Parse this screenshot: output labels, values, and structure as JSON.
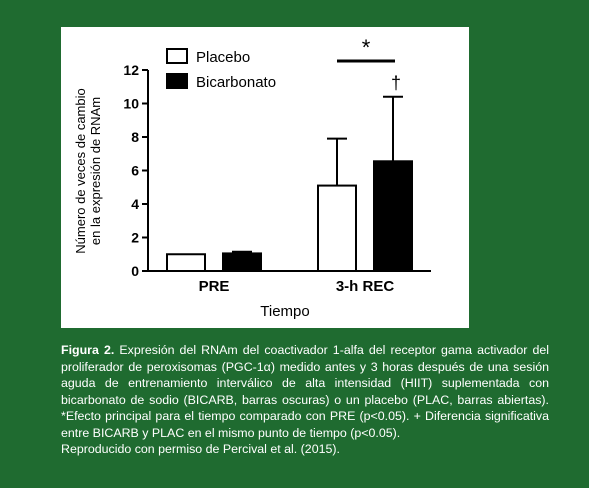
{
  "colors": {
    "background": "#1f6b30",
    "placebo_fill": "#ffffff",
    "bicarbonato_fill": "#000000"
  },
  "chart_data": {
    "type": "bar",
    "categories": [
      "PRE",
      "3-h REC"
    ],
    "series": [
      {
        "name": "Placebo",
        "values": [
          1.0,
          5.1
        ],
        "error": [
          0.0,
          2.8
        ]
      },
      {
        "name": "Bicarbonato",
        "values": [
          1.05,
          6.55
        ],
        "error": [
          0.1,
          3.85
        ]
      }
    ],
    "xlabel": "Tiempo",
    "ylabel_line1": "Número de veces de cambio",
    "ylabel_line2": "en la expresión de RNAm",
    "ylim": [
      0,
      12
    ],
    "yticks": [
      "0",
      "2",
      "4",
      "6",
      "8",
      "10",
      "12"
    ],
    "legend_position": "top-left",
    "annotations": {
      "star": "*",
      "dagger": "†"
    }
  },
  "caption": {
    "label": "Figura 2.",
    "text": "Expresión del RNAm del coactivador 1-alfa del receptor gama activador del proliferador de peroxisomas (PGC-1α) medido antes y 3 horas después de una sesión aguda de entrenamiento interválico de alta intensidad (HIIT) suplementada con bicarbonato de sodio (BICARB, barras oscuras) o un placebo (PLAC, barras abiertas). *Efecto principal para el tiempo comparado con PRE (p<0.05). + Diferencia significativa entre BICARB y PLAC en el mismo punto de tiempo (p<0.05).",
    "credit": "Reproducido con permiso de Percival et al. (2015)."
  }
}
